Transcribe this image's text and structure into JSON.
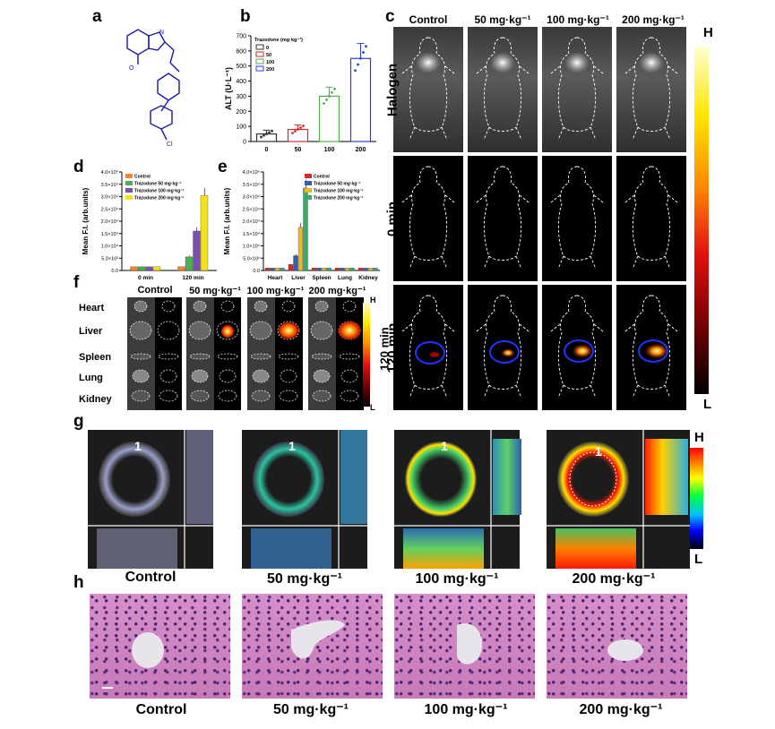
{
  "panel_letters": {
    "a": "a",
    "b": "b",
    "c": "c",
    "d": "d",
    "e": "e",
    "f": "f",
    "g": "g",
    "h": "h"
  },
  "panel_c": {
    "columns": [
      "Control",
      "50 mg·kg⁻¹",
      "100 mg·kg⁻¹",
      "200 mg·kg⁻¹"
    ],
    "rows": [
      "Halogen",
      "0 min",
      "120 min"
    ],
    "scale_high": "H",
    "scale_low": "L"
  },
  "panel_f": {
    "columns": [
      "Control",
      "50 mg·kg⁻¹",
      "100 mg·kg⁻¹",
      "200 mg·kg⁻¹"
    ],
    "organs": [
      "Heart",
      "Liver",
      "Spleen",
      "Lung",
      "Kidney"
    ],
    "side_label": "120 min",
    "scale_high": "H",
    "scale_low": "L"
  },
  "panel_g": {
    "columns": [
      "Control",
      "50 mg·kg⁻¹",
      "100 mg·kg⁻¹",
      "200 mg·kg⁻¹"
    ],
    "marker": "1",
    "scale_high": "H",
    "scale_low": "L"
  },
  "panel_h": {
    "columns": [
      "Control",
      "50 mg·kg⁻¹",
      "100 mg·kg⁻¹",
      "200 mg·kg⁻¹"
    ]
  },
  "chart_data": [
    {
      "id": "b",
      "type": "bar",
      "legend_title": "Trazodone (mg·kg⁻¹)",
      "categories": [
        "0",
        "50",
        "100",
        "200"
      ],
      "series": [
        {
          "name": "0",
          "values": [
            50,
            null,
            null,
            null
          ]
        },
        {
          "name": "50",
          "values": [
            null,
            80,
            null,
            null
          ]
        },
        {
          "name": "100",
          "values": [
            null,
            null,
            300,
            null
          ]
        },
        {
          "name": "200",
          "values": [
            null,
            null,
            null,
            550
          ]
        }
      ],
      "values": [
        50,
        80,
        300,
        550
      ],
      "errors": [
        25,
        30,
        60,
        100
      ],
      "colors": [
        "#333333",
        "#d22b2b",
        "#4caf50",
        "#2b3fd2"
      ],
      "ylabel": "ALT (U·L⁻¹)",
      "ylim": [
        0,
        700
      ],
      "yticks": [
        0,
        100,
        200,
        300,
        400,
        500,
        600,
        700
      ]
    },
    {
      "id": "d",
      "type": "bar",
      "categories": [
        "0 min",
        "120 min"
      ],
      "series": [
        {
          "name": "Control",
          "values": [
            1500,
            1500
          ],
          "color": "#f08a24"
        },
        {
          "name": "Trazodone 50 mg·kg⁻¹",
          "values": [
            1500,
            5500
          ],
          "color": "#4caf50"
        },
        {
          "name": "Trazodone 100 mg·kg⁻¹",
          "values": [
            1500,
            16000
          ],
          "color": "#7b52ab"
        },
        {
          "name": "Trazodone 200 mg·kg⁻¹",
          "values": [
            1500,
            30500
          ],
          "color": "#f5e11c"
        }
      ],
      "ylabel": "Mean F.I. (arb.units)",
      "ylim": [
        0,
        40000
      ],
      "yticks": [
        "0.0",
        "5.0×10³",
        "1.0×10⁴",
        "1.5×10⁴",
        "2.0×10⁴",
        "2.5×10⁴",
        "3.0×10⁴",
        "3.5×10⁴",
        "4.0×10⁴"
      ]
    },
    {
      "id": "e",
      "type": "bar",
      "categories": [
        "Heart",
        "Liver",
        "Spleen",
        "Lung",
        "Kidney"
      ],
      "series": [
        {
          "name": "Control",
          "values": [
            1000,
            2500,
            1000,
            1000,
            1000
          ],
          "color": "#d22b2b"
        },
        {
          "name": "Trazodone 50 mg·kg⁻¹",
          "values": [
            1000,
            6000,
            1000,
            1000,
            1000
          ],
          "color": "#3a5fa8"
        },
        {
          "name": "Trazodone 100 mg·kg⁻¹",
          "values": [
            1000,
            17500,
            1000,
            1000,
            1000
          ],
          "color": "#e8b82a"
        },
        {
          "name": "Trazodone 200 mg·kg⁻¹",
          "values": [
            1000,
            33500,
            1000,
            1000,
            1000
          ],
          "color": "#3aaa6a"
        }
      ],
      "ylabel": "Mean F.I. (arb.units)",
      "ylim": [
        0,
        40000
      ],
      "yticks": [
        "0.0",
        "5.0×10³",
        "1.0×10⁴",
        "1.5×10⁴",
        "2.0×10⁴",
        "2.5×10⁴",
        "3.0×10⁴",
        "3.5×10⁴",
        "4.0×10⁴"
      ]
    }
  ]
}
